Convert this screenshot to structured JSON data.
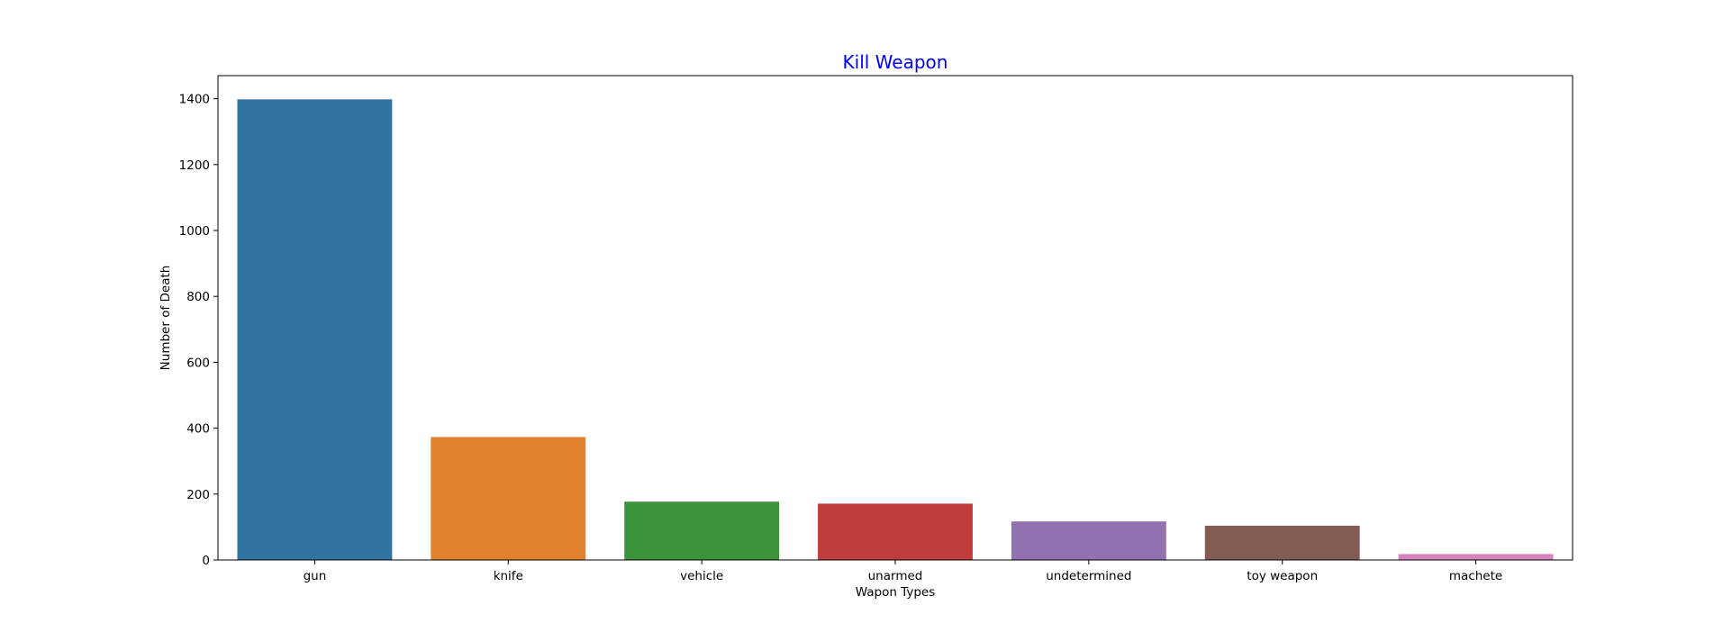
{
  "chart_data": {
    "type": "bar",
    "title": "Kill Weapon",
    "title_color": "#0000ff",
    "xlabel": "Wapon Types",
    "ylabel": "Number of Death",
    "categories": [
      "gun",
      "knife",
      "vehicle",
      "unarmed",
      "undetermined",
      "toy weapon",
      "machete"
    ],
    "values": [
      1398,
      373,
      177,
      171,
      117,
      104,
      18
    ],
    "colors": [
      "#3274a1",
      "#e1812c",
      "#3a923a",
      "#c03d3e",
      "#9372b2",
      "#845b53",
      "#d684bd"
    ],
    "ylim": [
      0,
      1470
    ],
    "yticks": [
      0,
      200,
      400,
      600,
      800,
      1000,
      1200,
      1400
    ],
    "grid": false,
    "legend": "none"
  }
}
